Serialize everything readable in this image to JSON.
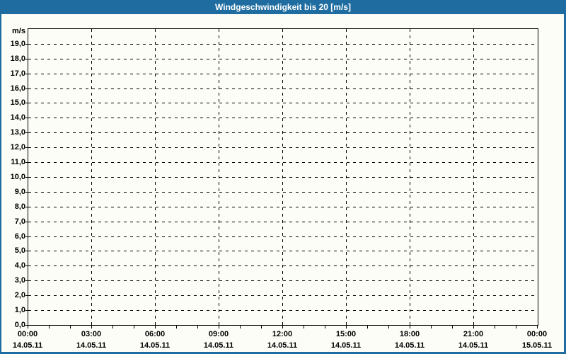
{
  "window": {
    "title": "Windgeschwindigkeit bis 20 [m/s]",
    "title_bar_color": "#1f6da0",
    "title_text_color": "#ffffff",
    "background_color": "#fbfdf6",
    "border_color": "#1f6da0"
  },
  "chart_data": {
    "type": "line",
    "title": "Windgeschwindigkeit bis 20 [m/s]",
    "ylabel_unit": "m/s",
    "ylim": [
      0,
      20
    ],
    "y_tick_step": 1,
    "y_tick_labels_top_to_bottom": [
      "19,0",
      "18,0",
      "17,0",
      "16,0",
      "15,0",
      "14,0",
      "13,0",
      "12,0",
      "11,0",
      "10,0",
      "9,0",
      "8,0",
      "7,0",
      "6,0",
      "5,0",
      "4,0",
      "3,0",
      "2,0",
      "1,0",
      "0,0"
    ],
    "x_major_ticks": [
      {
        "time": "00:00",
        "date": "14.05.11",
        "hour": 0
      },
      {
        "time": "03:00",
        "date": "14.05.11",
        "hour": 3
      },
      {
        "time": "06:00",
        "date": "14.05.11",
        "hour": 6
      },
      {
        "time": "09:00",
        "date": "14.05.11",
        "hour": 9
      },
      {
        "time": "12:00",
        "date": "14.05.11",
        "hour": 12
      },
      {
        "time": "15:00",
        "date": "14.05.11",
        "hour": 15
      },
      {
        "time": "18:00",
        "date": "14.05.11",
        "hour": 18
      },
      {
        "time": "21:00",
        "date": "14.05.11",
        "hour": 21
      },
      {
        "time": "00:00",
        "date": "15.05.11",
        "hour": 24
      }
    ],
    "x_minor_tick_hours": 1,
    "x_range_hours": [
      0,
      24
    ],
    "grid": "dashed",
    "grid_color": "#000000",
    "legend": "none",
    "series": []
  }
}
